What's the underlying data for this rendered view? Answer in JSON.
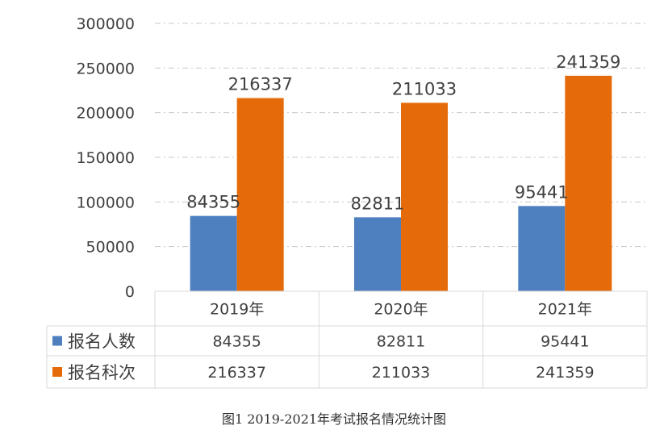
{
  "chart_data": {
    "type": "bar",
    "categories": [
      "2019年",
      "2020年",
      "2021年"
    ],
    "series": [
      {
        "name": "报名人数",
        "values": [
          84355,
          82811,
          95441
        ],
        "color": "#4E7FBF"
      },
      {
        "name": "报名科次",
        "values": [
          216337,
          211033,
          241359
        ],
        "color": "#E56B0A"
      }
    ],
    "ylim": [
      0,
      300000
    ],
    "yticks": [
      0,
      50000,
      100000,
      150000,
      200000,
      250000,
      300000
    ],
    "grid": true,
    "data_table": true
  },
  "caption": "图1   2019-2021年考试报名情况统计图"
}
